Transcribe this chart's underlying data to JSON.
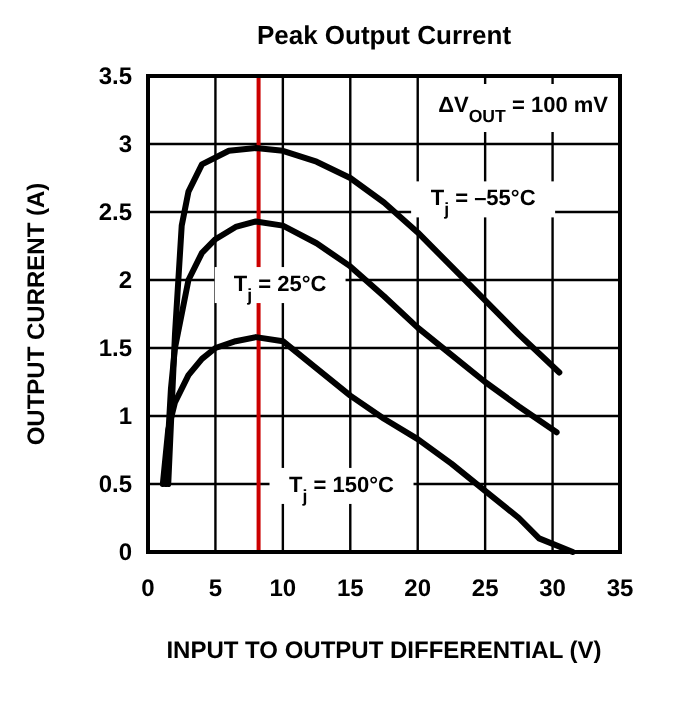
{
  "chart_data": {
    "type": "line",
    "title": "Peak Output Current",
    "xlabel": "INPUT TO OUTPUT DIFFERENTIAL (V)",
    "ylabel": "OUTPUT CURRENT (A)",
    "xlim": [
      0,
      35
    ],
    "ylim": [
      0,
      3.5
    ],
    "xticks": [
      0,
      5,
      10,
      15,
      20,
      25,
      30,
      35
    ],
    "yticks": [
      0,
      0.5,
      1,
      1.5,
      2,
      2.5,
      3,
      3.5
    ],
    "grid": true,
    "marker": "none",
    "line_style": "solid",
    "series": [
      {
        "name": "T$_{j}$ = –55°C",
        "color": "#000000",
        "x": [
          1.5,
          2,
          2.5,
          3,
          4,
          6,
          8,
          10,
          12.5,
          15,
          17.5,
          20,
          22.5,
          25,
          27.5,
          30.5
        ],
        "values": [
          0.5,
          1.6,
          2.4,
          2.65,
          2.85,
          2.95,
          2.97,
          2.95,
          2.87,
          2.75,
          2.57,
          2.35,
          2.1,
          1.85,
          1.6,
          1.32
        ]
      },
      {
        "name": "T$_{j}$ = 25°C",
        "color": "#000000",
        "x": [
          1.3,
          1.7,
          2,
          3,
          4,
          5,
          6.5,
          8,
          10,
          12.5,
          15,
          17.5,
          20,
          22.5,
          25,
          27.5,
          30.3
        ],
        "values": [
          0.5,
          1.2,
          1.5,
          2.0,
          2.2,
          2.3,
          2.39,
          2.43,
          2.4,
          2.27,
          2.1,
          1.88,
          1.65,
          1.45,
          1.25,
          1.07,
          0.88
        ]
      },
      {
        "name": "T$_{j}$ = 150°C",
        "color": "#000000",
        "x": [
          1.1,
          1.5,
          2,
          3,
          4,
          5,
          6.5,
          8,
          10,
          12.5,
          15,
          17.5,
          20,
          22.5,
          25,
          27.5,
          29,
          31.5
        ],
        "values": [
          0.5,
          0.9,
          1.1,
          1.3,
          1.42,
          1.5,
          1.55,
          1.58,
          1.55,
          1.35,
          1.15,
          0.98,
          0.83,
          0.65,
          0.45,
          0.25,
          0.1,
          0
        ]
      }
    ],
    "ref_lines": [
      {
        "axis": "x",
        "value": 8.2,
        "color": "#cc0000"
      }
    ],
    "annotations": [
      "ΔV$_{OUT}$ = 100 mV"
    ]
  }
}
